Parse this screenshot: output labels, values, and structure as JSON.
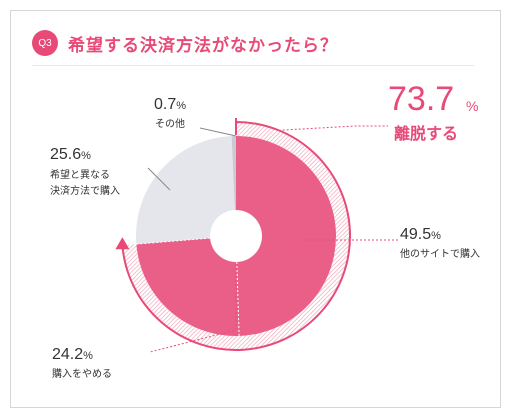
{
  "header": {
    "badge": "Q3",
    "title": "希望する決済方法がなかったら？"
  },
  "summary": {
    "value": "73.7",
    "unit": "%",
    "label": "離脱する"
  },
  "colors": {
    "accent": "#e84a78",
    "pink": "#ea5f88",
    "light_pink": "#f6c7d4",
    "gray": "#e4e6ec"
  },
  "chart_data": {
    "type": "pie",
    "title": "希望する決済方法がなかったら？",
    "slices": [
      {
        "label": "他のサイトで購入",
        "value": 49.5,
        "display": "49.5",
        "unit": "%",
        "color": "#ea5f88"
      },
      {
        "label": "購入をやめる",
        "value": 24.2,
        "display": "24.2",
        "unit": "%",
        "color": "#ea5f88"
      },
      {
        "label": "希望と異なる決済方法で購入",
        "value": 25.6,
        "display": "25.6",
        "unit": "%",
        "color": "#e4e6ec"
      },
      {
        "label": "その他",
        "value": 0.7,
        "display": "0.7",
        "unit": "%",
        "color": "#c8cad4"
      }
    ],
    "annotation": {
      "value": "73.7",
      "unit": "%",
      "label": "離脱する"
    }
  },
  "labels": {
    "s0": {
      "value": "49.5",
      "unit": "%",
      "text": "他のサイトで購入"
    },
    "s1": {
      "value": "24.2",
      "unit": "%",
      "text": "購入をやめる"
    },
    "s2": {
      "value": "25.6",
      "unit": "%",
      "line1": "希望と異なる",
      "line2": "決済方法で購入"
    },
    "s3": {
      "value": "0.7",
      "unit": "%",
      "text": "その他"
    }
  }
}
